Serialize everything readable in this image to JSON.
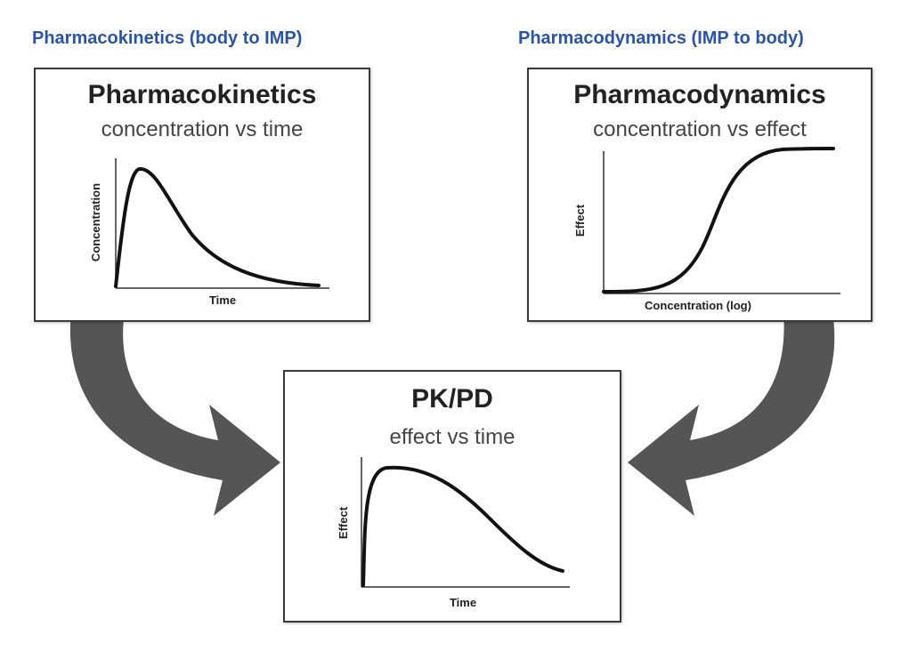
{
  "headings": {
    "left": "Pharmacokinetics (body to IMP)",
    "right": "Pharmacodynamics (IMP to body)"
  },
  "panels": {
    "pk": {
      "title": "Pharmacokinetics",
      "subtitle": "concentration vs time",
      "xlabel": "Time",
      "ylabel": "Concentration"
    },
    "pd": {
      "title": "Pharmacodynamics",
      "subtitle": "concentration vs effect",
      "xlabel": "Concentration (log)",
      "ylabel": "Effect"
    },
    "pkpd": {
      "title": "PK/PD",
      "subtitle": "effect vs time",
      "xlabel": "Time",
      "ylabel": "Effect"
    }
  },
  "colors": {
    "heading": "#2a54a4",
    "arrow": "#555555",
    "curve": "#111111"
  }
}
